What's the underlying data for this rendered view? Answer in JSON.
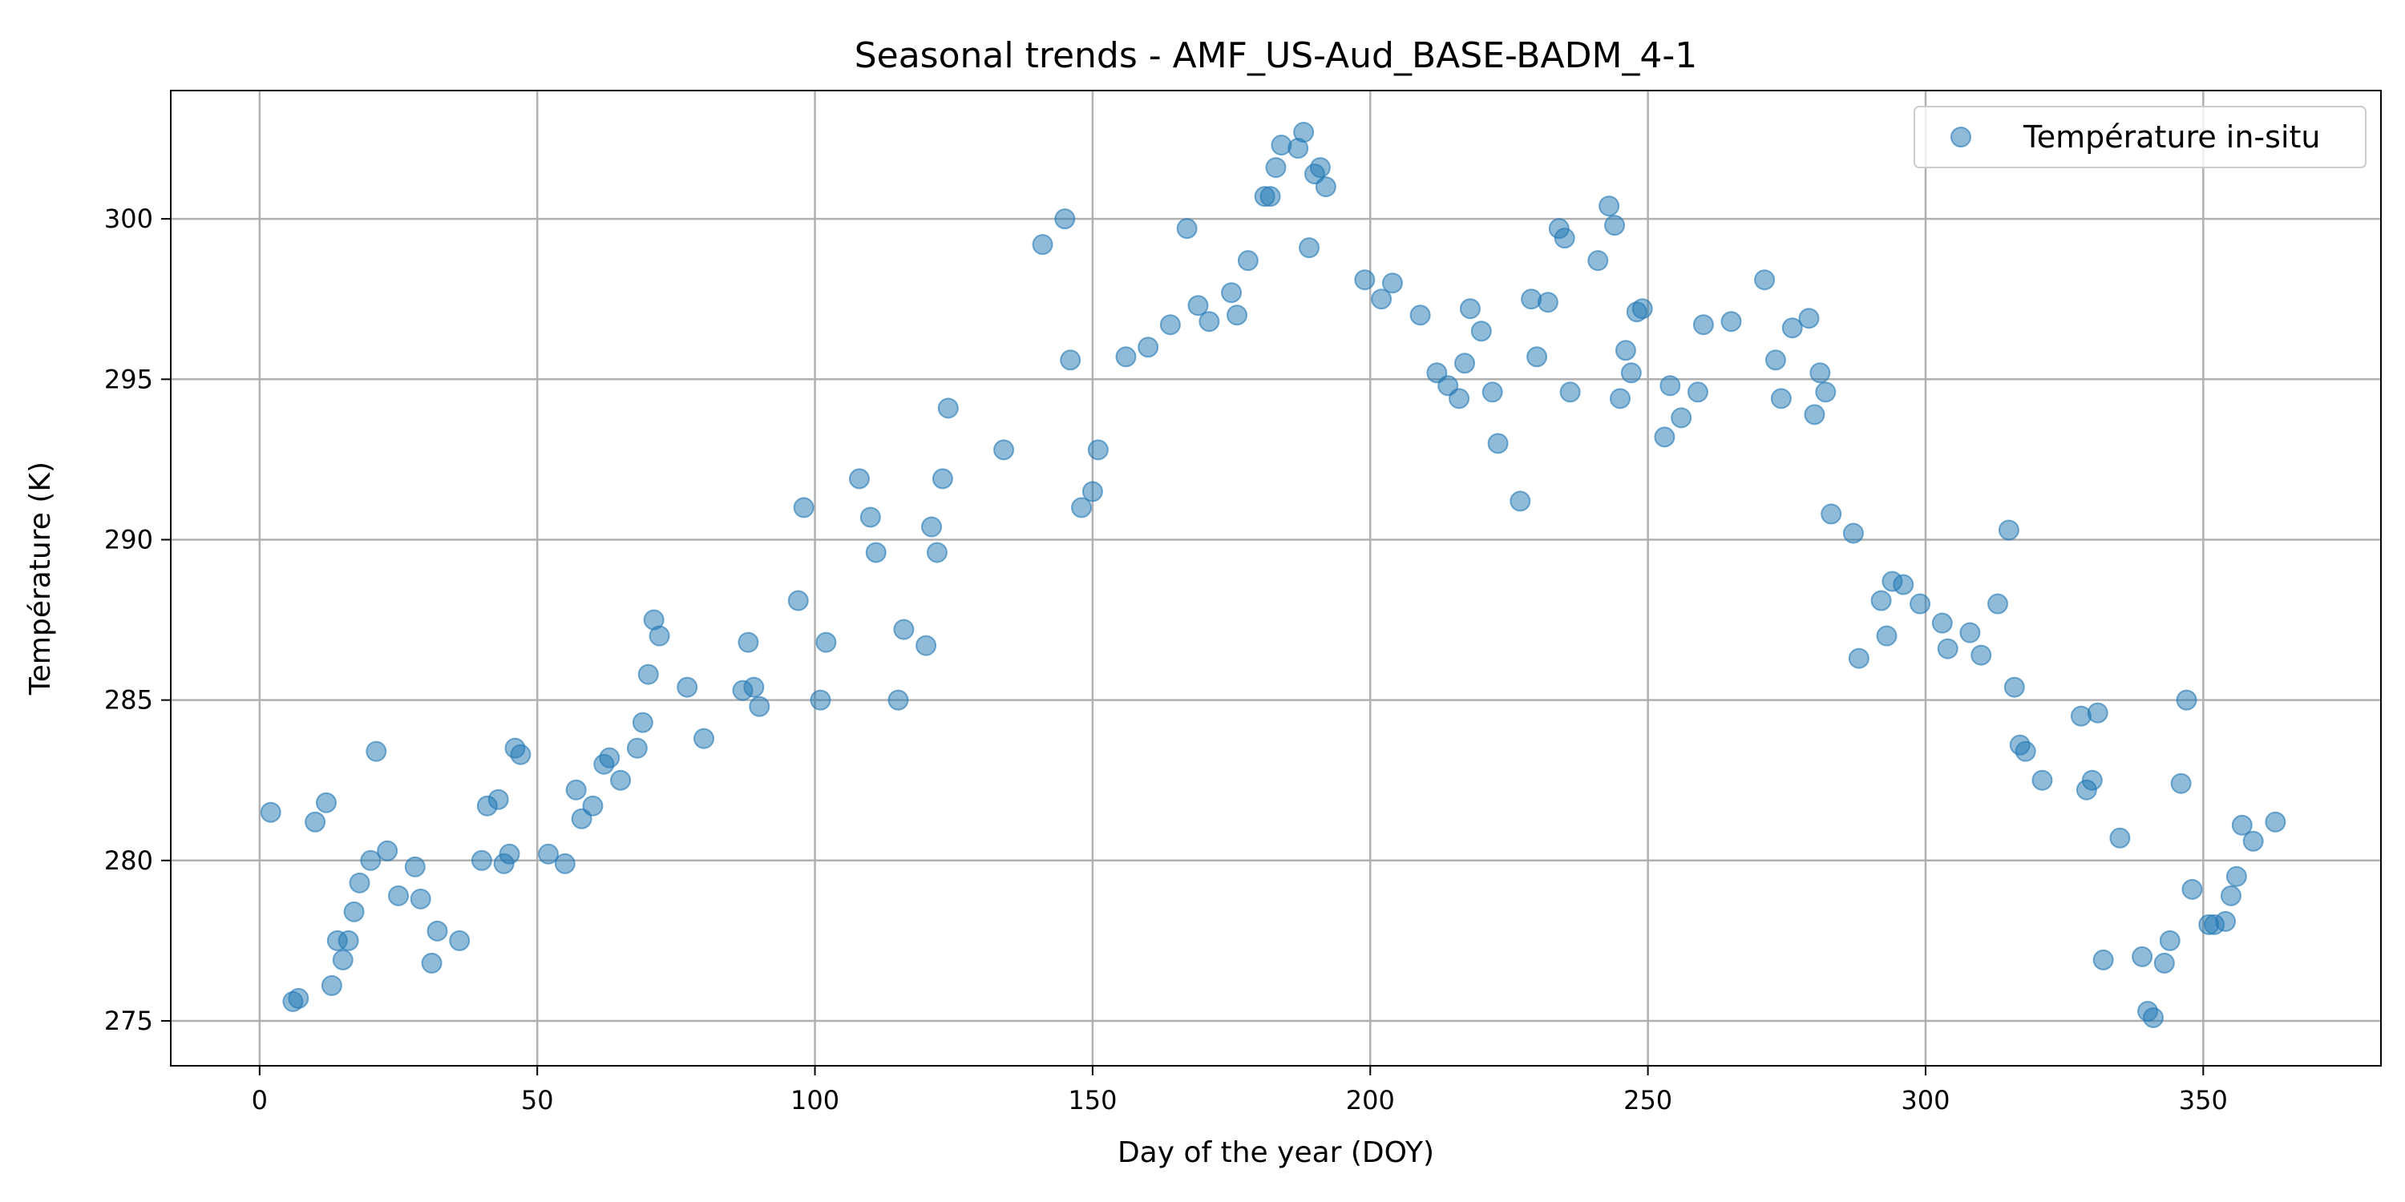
{
  "chart_data": {
    "type": "scatter",
    "title": "Seasonal trends - AMF_US-Aud_BASE-BADM_4-1",
    "xlabel": "Day of the year (DOY)",
    "ylabel": "Température (K)",
    "xlim": [
      -16,
      382
    ],
    "ylim": [
      273.6,
      304.0
    ],
    "xticks": [
      0,
      50,
      100,
      150,
      200,
      250,
      300,
      350
    ],
    "yticks": [
      275,
      280,
      285,
      290,
      295,
      300
    ],
    "grid": true,
    "legend_position": "top-right",
    "colors": {
      "series": "#1f77b4",
      "grid": "#b0b0b0",
      "axes": "#000000"
    },
    "series": [
      {
        "name": "Température in-situ",
        "marker": "circle",
        "x": [
          2,
          6,
          7,
          10,
          12,
          13,
          14,
          15,
          16,
          17,
          18,
          20,
          21,
          23,
          25,
          28,
          29,
          31,
          32,
          36,
          40,
          41,
          43,
          44,
          45,
          46,
          47,
          52,
          55,
          57,
          58,
          60,
          62,
          63,
          65,
          68,
          69,
          70,
          71,
          72,
          77,
          80,
          87,
          88,
          89,
          90,
          97,
          98,
          101,
          102,
          108,
          110,
          111,
          115,
          116,
          120,
          121,
          122,
          123,
          124,
          134,
          141,
          145,
          146,
          148,
          150,
          151,
          156,
          160,
          164,
          167,
          169,
          171,
          175,
          176,
          178,
          181,
          182,
          183,
          184,
          187,
          188,
          189,
          190,
          191,
          192,
          199,
          202,
          204,
          209,
          212,
          214,
          216,
          217,
          218,
          220,
          222,
          223,
          227,
          229,
          230,
          232,
          234,
          235,
          236,
          241,
          243,
          244,
          245,
          246,
          247,
          248,
          249,
          253,
          254,
          256,
          259,
          260,
          265,
          271,
          273,
          274,
          276,
          279,
          280,
          281,
          282,
          283,
          287,
          288,
          292,
          293,
          294,
          296,
          299,
          303,
          304,
          308,
          310,
          313,
          315,
          316,
          317,
          318,
          321,
          328,
          329,
          330,
          331,
          332,
          335,
          339,
          340,
          341,
          343,
          344,
          346,
          347,
          348,
          351,
          352,
          354,
          355,
          356,
          357,
          359,
          363
        ],
        "y": [
          281.5,
          275.6,
          275.7,
          281.2,
          281.8,
          276.1,
          277.5,
          276.9,
          277.5,
          278.4,
          279.3,
          280.0,
          283.4,
          280.3,
          278.9,
          279.8,
          278.8,
          276.8,
          277.8,
          277.5,
          280.0,
          281.7,
          281.9,
          279.9,
          280.2,
          283.5,
          283.3,
          280.2,
          279.9,
          282.2,
          281.3,
          281.7,
          283.0,
          283.2,
          282.5,
          283.5,
          284.3,
          285.8,
          287.5,
          287.0,
          285.4,
          283.8,
          285.3,
          286.8,
          285.4,
          284.8,
          288.1,
          291.0,
          285.0,
          286.8,
          291.9,
          290.7,
          289.6,
          285.0,
          287.2,
          286.7,
          290.4,
          289.6,
          291.9,
          294.1,
          292.8,
          299.2,
          300.0,
          295.6,
          291.0,
          291.5,
          292.8,
          295.7,
          296.0,
          296.7,
          299.7,
          297.3,
          296.8,
          297.7,
          297.0,
          298.7,
          300.7,
          300.7,
          301.6,
          302.3,
          302.2,
          302.7,
          299.1,
          301.4,
          301.6,
          301.0,
          298.1,
          297.5,
          298.0,
          297.0,
          295.2,
          294.8,
          294.4,
          295.5,
          297.2,
          296.5,
          294.6,
          293.0,
          291.2,
          297.5,
          295.7,
          297.4,
          299.7,
          299.4,
          294.6,
          298.7,
          300.4,
          299.8,
          294.4,
          295.9,
          295.2,
          297.1,
          297.2,
          293.2,
          294.8,
          293.8,
          294.6,
          296.7,
          296.8,
          298.1,
          295.6,
          294.4,
          296.6,
          296.9,
          293.9,
          295.2,
          294.6,
          290.8,
          290.2,
          286.3,
          288.1,
          287.0,
          288.7,
          288.6,
          288.0,
          287.4,
          286.6,
          287.1,
          286.4,
          288.0,
          290.3,
          285.4,
          283.6,
          283.4,
          282.5,
          284.5,
          282.2,
          282.5,
          284.6,
          276.9,
          280.7,
          277.0,
          275.3,
          275.1,
          276.8,
          277.5,
          282.4,
          285.0,
          279.1,
          278.0,
          278.0,
          278.1,
          278.9,
          279.5,
          281.1,
          280.6,
          281.2
        ]
      }
    ]
  }
}
